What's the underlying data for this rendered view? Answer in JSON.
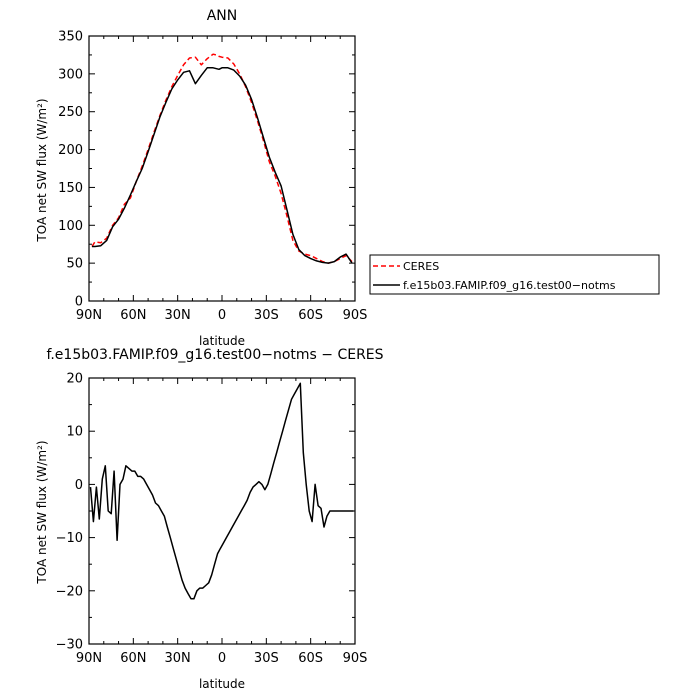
{
  "chart_data": [
    {
      "type": "line",
      "title": "ANN",
      "xlabel": "latitude",
      "ylabel": "TOA net SW flux (W/m²)",
      "xlim": [
        90,
        -90
      ],
      "ylim": [
        0,
        350
      ],
      "x_ticks": [
        90,
        60,
        30,
        0,
        -30,
        -60,
        -90
      ],
      "x_tick_labels": [
        "90N",
        "60N",
        "30N",
        "0",
        "30S",
        "60S",
        "90S"
      ],
      "y_ticks": [
        0,
        50,
        100,
        150,
        200,
        250,
        300,
        350
      ],
      "grid": false,
      "legend_position": "right-outside",
      "series": [
        {
          "name": "CERES",
          "color": "#ff0000",
          "dash": "dashed",
          "x": [
            88,
            86,
            82,
            78,
            74,
            70,
            66,
            62,
            58,
            54,
            50,
            46,
            42,
            38,
            34,
            30,
            26,
            22,
            18,
            14,
            10,
            6,
            4,
            2,
            0,
            -4,
            -8,
            -12,
            -16,
            -20,
            -24,
            -28,
            -32,
            -36,
            -40,
            -44,
            -48,
            -52,
            -56,
            -60,
            -64,
            -68,
            -72,
            -76,
            -80,
            -84,
            -88
          ],
          "y": [
            72,
            78,
            77,
            83,
            100,
            110,
            128,
            136,
            158,
            178,
            200,
            223,
            245,
            265,
            283,
            298,
            312,
            321,
            322,
            312,
            320,
            326,
            325,
            323,
            322,
            321,
            313,
            300,
            283,
            262,
            238,
            212,
            184,
            165,
            142,
            112,
            80,
            66,
            62,
            60,
            56,
            52,
            50,
            52,
            56,
            60,
            52
          ]
        },
        {
          "name": "f.e15b03.FAMIP.f09_g16.test00−notms",
          "color": "#000000",
          "dash": "solid",
          "x": [
            88,
            86,
            82,
            78,
            74,
            70,
            66,
            62,
            58,
            54,
            50,
            46,
            42,
            38,
            34,
            30,
            26,
            22,
            18,
            14,
            10,
            6,
            2,
            0,
            -4,
            -8,
            -12,
            -16,
            -20,
            -24,
            -28,
            -32,
            -36,
            -40,
            -44,
            -48,
            -52,
            -56,
            -60,
            -64,
            -68,
            -72,
            -76,
            -80,
            -84,
            -88
          ],
          "y": [
            72,
            72,
            73,
            80,
            98,
            108,
            123,
            140,
            158,
            175,
            197,
            220,
            243,
            262,
            280,
            292,
            302,
            304,
            287,
            298,
            308,
            308,
            306,
            308,
            308,
            305,
            297,
            285,
            266,
            242,
            216,
            190,
            170,
            152,
            120,
            88,
            68,
            60,
            56,
            53,
            51,
            50,
            52,
            58,
            62,
            50
          ]
        }
      ]
    },
    {
      "type": "line",
      "title": "f.e15b03.FAMIP.f09_g16.test00−notms − CERES",
      "xlabel": "latitude",
      "ylabel": "TOA net SW flux (W/m²)",
      "xlim": [
        90,
        -90
      ],
      "ylim": [
        -30,
        20
      ],
      "x_ticks": [
        90,
        60,
        30,
        0,
        -30,
        -60,
        -90
      ],
      "x_tick_labels": [
        "90N",
        "60N",
        "30N",
        "0",
        "30S",
        "60S",
        "90S"
      ],
      "y_ticks": [
        -30,
        -20,
        -10,
        0,
        10,
        20
      ],
      "grid": false,
      "series": [
        {
          "name": "",
          "color": "#000000",
          "dash": "solid",
          "x": [
            89,
            87,
            85,
            83,
            81,
            79,
            77,
            75,
            73,
            71,
            69,
            67,
            65,
            63,
            61,
            59,
            57,
            55,
            53,
            51,
            49,
            47,
            45,
            43,
            41,
            39,
            37,
            35,
            33,
            31,
            29,
            27,
            25,
            23,
            21,
            19,
            17,
            15,
            13,
            11,
            9,
            7,
            5,
            3,
            1,
            -1,
            -3,
            -5,
            -7,
            -9,
            -11,
            -13,
            -15,
            -17,
            -19,
            -21,
            -23,
            -25,
            -27,
            -29,
            -31,
            -33,
            -35,
            -37,
            -39,
            -41,
            -43,
            -45,
            -47,
            -49,
            -51,
            -53,
            -55,
            -57,
            -59,
            -61,
            -63,
            -65,
            -67,
            -69,
            -71,
            -73,
            -75,
            -77,
            -79,
            -81,
            -83,
            -85,
            -87,
            -89
          ],
          "y": [
            -0.5,
            -7,
            -0.5,
            -6.5,
            1,
            3.5,
            -5,
            -5.5,
            2.5,
            -10.5,
            0,
            1,
            3.5,
            3,
            2.5,
            2.5,
            1.5,
            1.5,
            1,
            0,
            -1,
            -2,
            -3.5,
            -4,
            -5,
            -6,
            -8,
            -10,
            -12,
            -14,
            -16,
            -18,
            -19.5,
            -20.5,
            -21.5,
            -21.5,
            -20,
            -19.5,
            -19.5,
            -19,
            -18.5,
            -17,
            -15,
            -13,
            -12,
            -11,
            -10,
            -9,
            -8,
            -7,
            -6,
            -5,
            -4,
            -3,
            -1.5,
            -0.5,
            0,
            0.5,
            0,
            -1,
            0,
            2,
            4,
            6,
            8,
            10,
            12,
            14,
            16,
            17,
            18,
            19,
            6,
            0,
            -5,
            -7,
            0,
            -4,
            -4.5,
            -8,
            -6,
            -5,
            -5,
            -5,
            -5,
            -5,
            -5,
            -5,
            -5,
            -5
          ]
        }
      ]
    }
  ]
}
